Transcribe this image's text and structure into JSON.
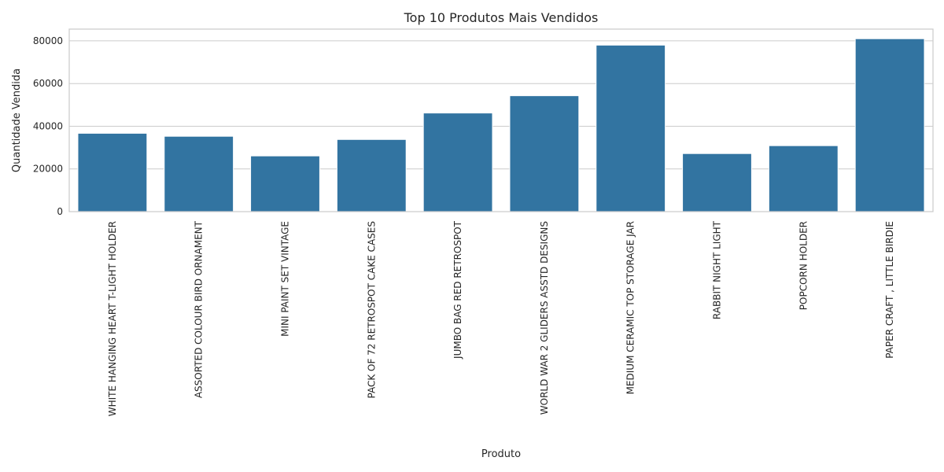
{
  "chart_data": {
    "type": "bar",
    "title": "Top 10 Produtos Mais Vendidos",
    "xlabel": "Produto",
    "ylabel": "Quantidade Vendida",
    "categories": [
      "WHITE HANGING HEART T-LIGHT HOLDER",
      "ASSORTED COLOUR BIRD ORNAMENT",
      "MINI PAINT SET VINTAGE",
      "PACK OF 72 RETROSPOT CAKE CASES",
      "JUMBO BAG RED RETROSPOT",
      "WORLD WAR 2 GLIDERS ASSTD DESIGNS",
      "MEDIUM CERAMIC TOP STORAGE JAR",
      "RABBIT NIGHT LIGHT",
      "POPCORN HOLDER",
      "PAPER CRAFT , LITTLE BIRDIE"
    ],
    "values": [
      36700,
      35300,
      26100,
      33800,
      46200,
      54300,
      78000,
      27200,
      30900,
      81000
    ],
    "ylim": [
      0,
      85500
    ],
    "yticks": [
      0,
      20000,
      40000,
      60000,
      80000
    ],
    "ytick_labels": [
      "0",
      "20000",
      "40000",
      "60000",
      "80000"
    ],
    "grid": true,
    "bar_color": "#3274a1"
  }
}
